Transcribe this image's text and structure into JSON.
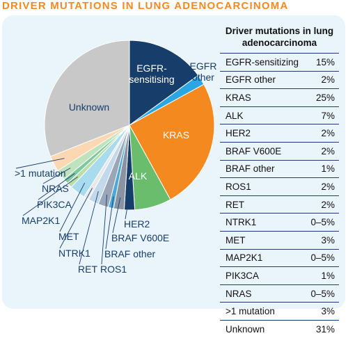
{
  "title": "DRIVER MUTATIONS IN LUNG ADENOCARCINOMA",
  "chart_data": {
    "type": "pie",
    "title": "DRIVER MUTATIONS IN LUNG ADENOCARCINOMA",
    "slices": [
      {
        "label": "EGFR-sensitising",
        "value": 15,
        "color": "#173d6b"
      },
      {
        "label": "EGFR other",
        "value": 2,
        "color": "#29a6e3"
      },
      {
        "label": "KRAS",
        "value": 25,
        "color": "#f4891f"
      },
      {
        "label": "ALK",
        "value": 7,
        "color": "#69bd6d"
      },
      {
        "label": "HER2",
        "value": 2,
        "color": "#173d6b"
      },
      {
        "label": "BRAF V600E",
        "value": 2,
        "color": "#8a93a3"
      },
      {
        "label": "BRAF other",
        "value": 1,
        "color": "#4aa9d8"
      },
      {
        "label": "ROS1",
        "value": 2,
        "color": "#9aa5b8"
      },
      {
        "label": "RET",
        "value": 2,
        "color": "#c2d9ec"
      },
      {
        "label": "NTRK1",
        "value": 1,
        "color": "#e8e8e8"
      },
      {
        "label": "MET",
        "value": 3,
        "color": "#a9dbee"
      },
      {
        "label": "MAP2K1",
        "value": 1,
        "color": "#b9dfa6"
      },
      {
        "label": "PIK3CA",
        "value": 1,
        "color": "#7fc7a0"
      },
      {
        "label": "NRAS",
        "value": 2,
        "color": "#bfe3bc"
      },
      {
        "label": ">1 mutation",
        "value": 3,
        "color": "#fbd8b2"
      },
      {
        "label": "Unknown",
        "value": 31,
        "color": "#c8c8c8"
      }
    ]
  },
  "table": {
    "header": "Driver mutations in lung adenocarcinoma",
    "rows": [
      {
        "label": "EGFR-sensitizing",
        "value": "15%"
      },
      {
        "label": "EGFR other",
        "value": "2%"
      },
      {
        "label": "KRAS",
        "value": "25%"
      },
      {
        "label": "ALK",
        "value": "7%"
      },
      {
        "label": "HER2",
        "value": "2%"
      },
      {
        "label": "BRAF V600E",
        "value": "2%"
      },
      {
        "label": "BRAF other",
        "value": "1%"
      },
      {
        "label": "ROS1",
        "value": "2%"
      },
      {
        "label": "RET",
        "value": "2%"
      },
      {
        "label": "NTRK1",
        "value": "0–5%"
      },
      {
        "label": "MET",
        "value": "3%"
      },
      {
        "label": "MAP2K1",
        "value": "0–5%"
      },
      {
        "label": "PIK3CA",
        "value": "1%"
      },
      {
        "label": "NRAS",
        "value": "0–5%"
      },
      {
        "label": ">1 mutation",
        "value": "3%"
      },
      {
        "label": "Unknown",
        "value": "31%"
      }
    ]
  },
  "colors": {
    "title": "#f4891f",
    "panel": "#eaf4fb",
    "rule": "#1a3c6e"
  }
}
